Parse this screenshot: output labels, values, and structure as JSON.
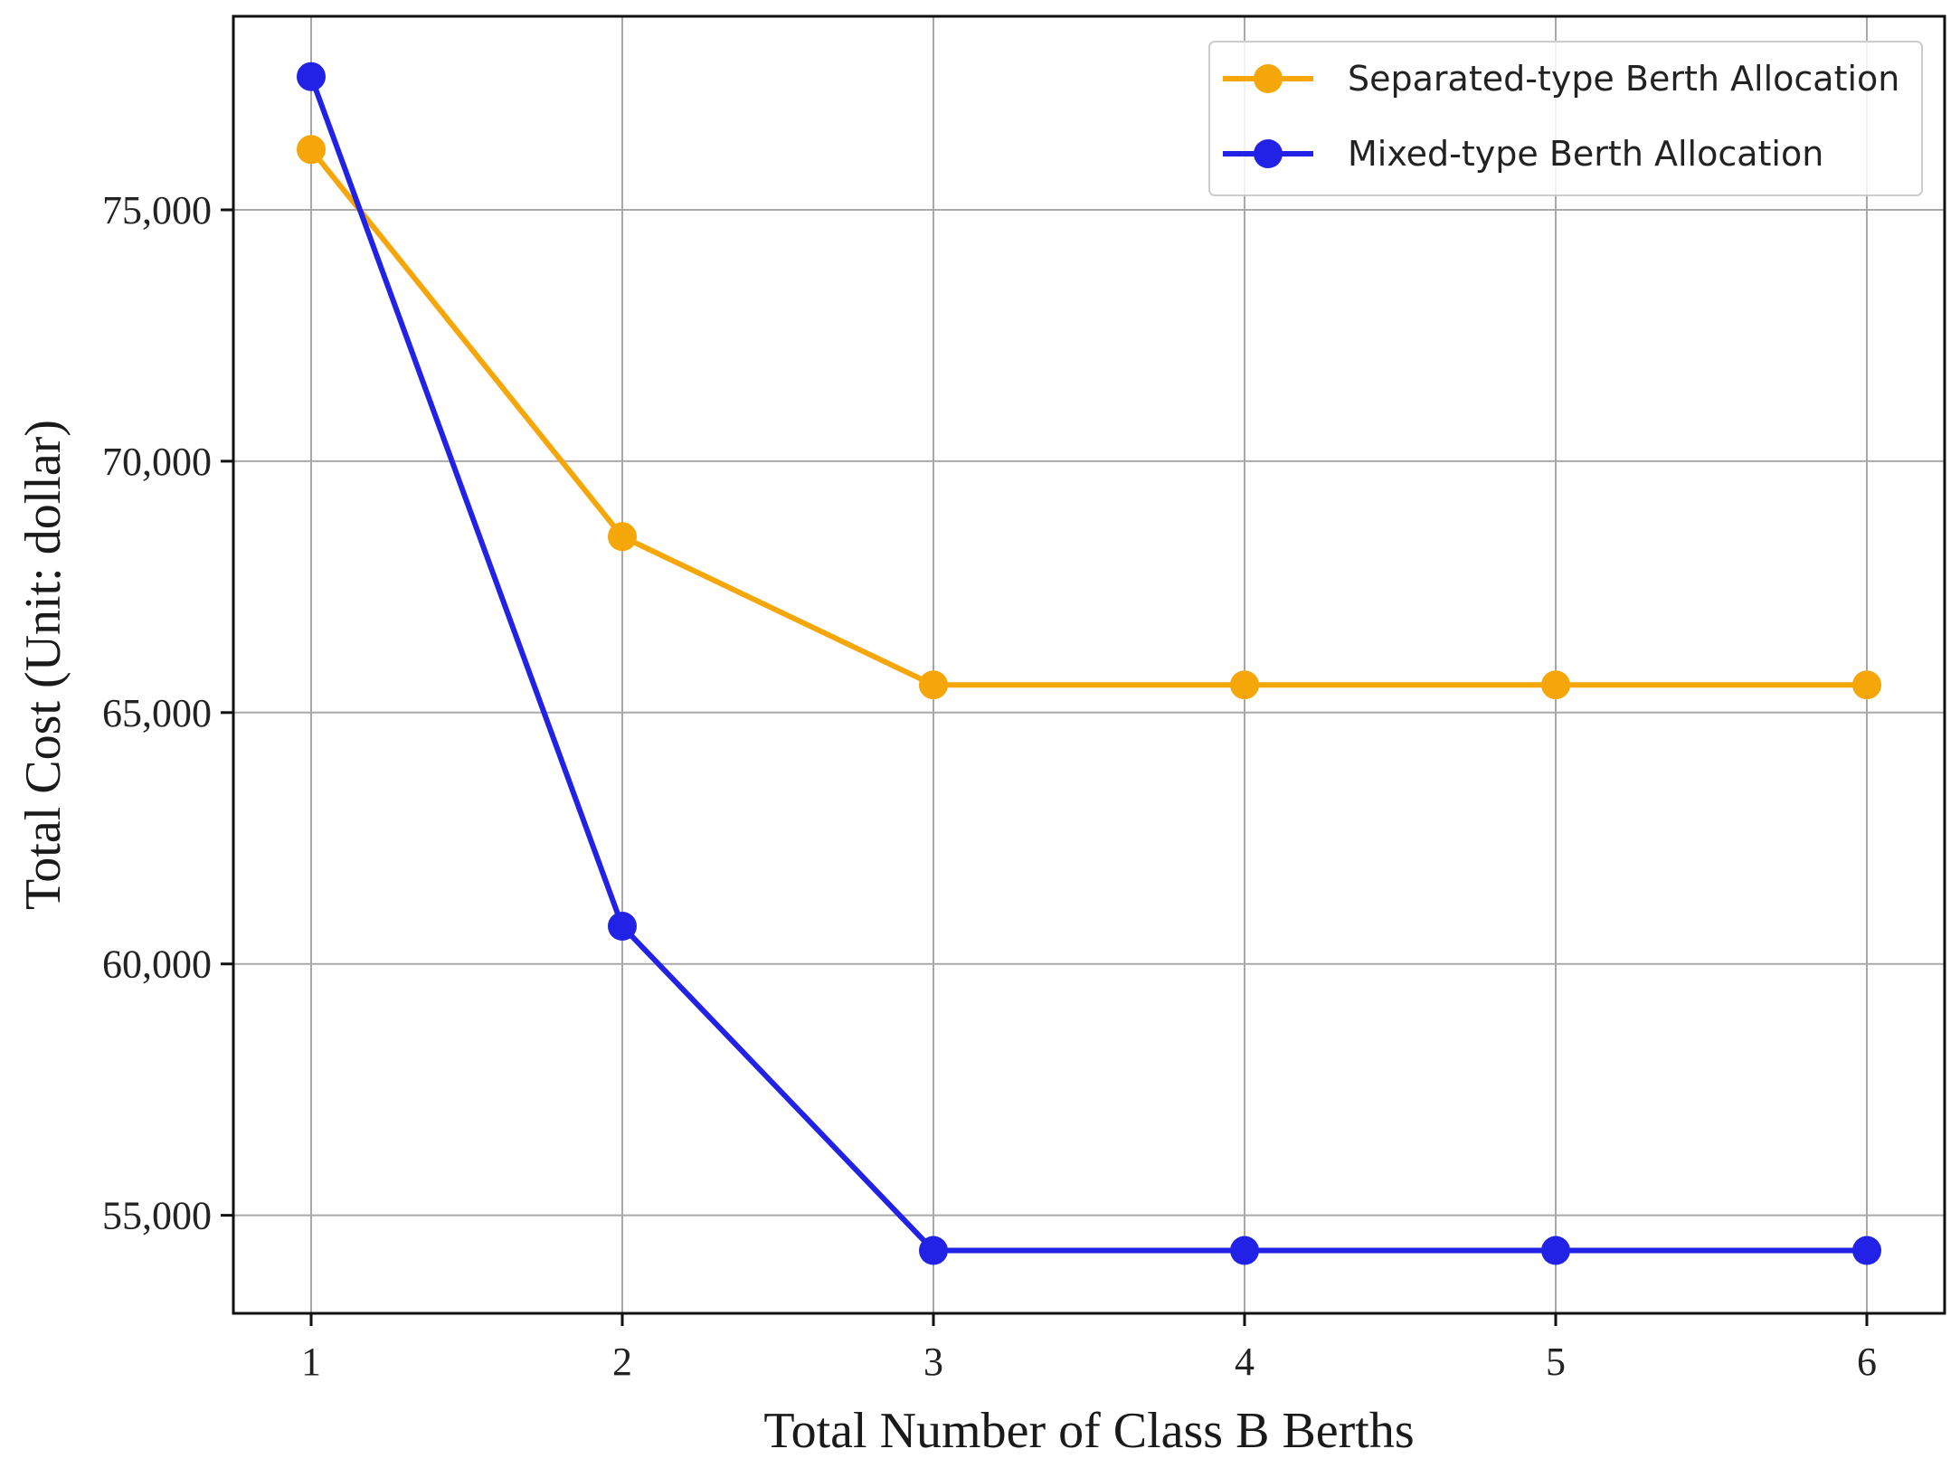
{
  "chart_data": {
    "type": "line",
    "xlabel": "Total Number of Class B Berths",
    "ylabel": "Total Cost (Unit: dollar)",
    "x": [
      1,
      2,
      3,
      4,
      5,
      6
    ],
    "x_tick_labels": [
      "1",
      "2",
      "3",
      "4",
      "5",
      "6"
    ],
    "y_tick_values": [
      55000,
      60000,
      65000,
      70000,
      75000
    ],
    "y_tick_labels": [
      "55,000",
      "60,000",
      "65,000",
      "70,000",
      "75,000"
    ],
    "xlim": [
      0.75,
      6.25
    ],
    "ylim": [
      53050,
      78850
    ],
    "grid": true,
    "legend_position": "top-right",
    "series": [
      {
        "name": "Separated-type Berth Allocation",
        "color": "#F5A70A",
        "values": [
          76200,
          68500,
          65550,
          65550,
          65550,
          65550
        ]
      },
      {
        "name": "Mixed-type Berth Allocation",
        "color": "#2222E6",
        "values": [
          77650,
          60750,
          54300,
          54300,
          54300,
          54300
        ]
      }
    ]
  }
}
